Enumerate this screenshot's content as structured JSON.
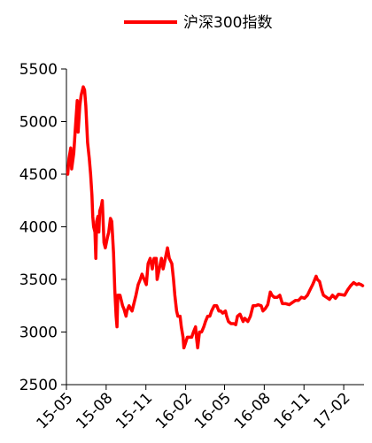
{
  "chart_data": {
    "type": "line",
    "title": "",
    "xlabel": "",
    "ylabel": "",
    "ylim": [
      2500,
      5500
    ],
    "yticks": [
      2500,
      3000,
      3500,
      4000,
      4500,
      5000,
      5500
    ],
    "x_ticks": [
      "15-05",
      "15-08",
      "15-11",
      "16-02",
      "16-05",
      "16-08",
      "16-11",
      "17-02"
    ],
    "x_range": [
      "2015-05-01",
      "2017-03-20"
    ],
    "grid": false,
    "legend": {
      "position": "top",
      "entries": [
        "沪深300指数"
      ]
    },
    "series": [
      {
        "name": "沪深300指数",
        "color": "#ff0000",
        "points": [
          [
            "2015-05-04",
            4500
          ],
          [
            "2015-05-07",
            4650
          ],
          [
            "2015-05-11",
            4750
          ],
          [
            "2015-05-13",
            4550
          ],
          [
            "2015-05-18",
            4700
          ],
          [
            "2015-05-21",
            4900
          ],
          [
            "2015-05-26",
            5200
          ],
          [
            "2015-05-28",
            4900
          ],
          [
            "2015-06-01",
            5150
          ],
          [
            "2015-06-04",
            5250
          ],
          [
            "2015-06-09",
            5330
          ],
          [
            "2015-06-12",
            5300
          ],
          [
            "2015-06-15",
            5150
          ],
          [
            "2015-06-19",
            4800
          ],
          [
            "2015-06-23",
            4650
          ],
          [
            "2015-06-26",
            4500
          ],
          [
            "2015-06-29",
            4300
          ],
          [
            "2015-07-01",
            4100
          ],
          [
            "2015-07-03",
            4000
          ],
          [
            "2015-07-06",
            3950
          ],
          [
            "2015-07-08",
            3700
          ],
          [
            "2015-07-10",
            4050
          ],
          [
            "2015-07-13",
            4100
          ],
          [
            "2015-07-15",
            3950
          ],
          [
            "2015-07-17",
            4150
          ],
          [
            "2015-07-21",
            4200
          ],
          [
            "2015-07-23",
            4250
          ],
          [
            "2015-07-27",
            3850
          ],
          [
            "2015-07-30",
            3800
          ],
          [
            "2015-08-04",
            3900
          ],
          [
            "2015-08-07",
            3950
          ],
          [
            "2015-08-11",
            4080
          ],
          [
            "2015-08-14",
            4050
          ],
          [
            "2015-08-18",
            3750
          ],
          [
            "2015-08-21",
            3400
          ],
          [
            "2015-08-24",
            3150
          ],
          [
            "2015-08-26",
            3050
          ],
          [
            "2015-08-28",
            3350
          ],
          [
            "2015-09-02",
            3350
          ],
          [
            "2015-09-08",
            3250
          ],
          [
            "2015-09-11",
            3220
          ],
          [
            "2015-09-16",
            3150
          ],
          [
            "2015-09-18",
            3200
          ],
          [
            "2015-09-23",
            3250
          ],
          [
            "2015-09-30",
            3200
          ],
          [
            "2015-10-09",
            3350
          ],
          [
            "2015-10-14",
            3450
          ],
          [
            "2015-10-19",
            3500
          ],
          [
            "2015-10-23",
            3550
          ],
          [
            "2015-10-28",
            3500
          ],
          [
            "2015-11-02",
            3450
          ],
          [
            "2015-11-06",
            3650
          ],
          [
            "2015-11-11",
            3700
          ],
          [
            "2015-11-16",
            3600
          ],
          [
            "2015-11-20",
            3700
          ],
          [
            "2015-11-25",
            3700
          ],
          [
            "2015-11-27",
            3500
          ],
          [
            "2015-12-02",
            3600
          ],
          [
            "2015-12-07",
            3700
          ],
          [
            "2015-12-11",
            3600
          ],
          [
            "2015-12-16",
            3700
          ],
          [
            "2015-12-21",
            3800
          ],
          [
            "2015-12-25",
            3700
          ],
          [
            "2015-12-31",
            3650
          ],
          [
            "2016-01-04",
            3500
          ],
          [
            "2016-01-07",
            3350
          ],
          [
            "2016-01-11",
            3200
          ],
          [
            "2016-01-14",
            3150
          ],
          [
            "2016-01-19",
            3150
          ],
          [
            "2016-01-22",
            3050
          ],
          [
            "2016-01-26",
            2950
          ],
          [
            "2016-01-28",
            2850
          ],
          [
            "2016-02-01",
            2900
          ],
          [
            "2016-02-05",
            2950
          ],
          [
            "2016-02-15",
            2950
          ],
          [
            "2016-02-19",
            3000
          ],
          [
            "2016-02-24",
            3050
          ],
          [
            "2016-02-26",
            2950
          ],
          [
            "2016-02-29",
            2850
          ],
          [
            "2016-03-04",
            3000
          ],
          [
            "2016-03-09",
            3000
          ],
          [
            "2016-03-14",
            3050
          ],
          [
            "2016-03-18",
            3100
          ],
          [
            "2016-03-23",
            3150
          ],
          [
            "2016-03-28",
            3150
          ],
          [
            "2016-04-01",
            3200
          ],
          [
            "2016-04-07",
            3250
          ],
          [
            "2016-04-13",
            3250
          ],
          [
            "2016-04-18",
            3200
          ],
          [
            "2016-04-22",
            3200
          ],
          [
            "2016-04-27",
            3180
          ],
          [
            "2016-05-03",
            3200
          ],
          [
            "2016-05-06",
            3150
          ],
          [
            "2016-05-10",
            3100
          ],
          [
            "2016-05-16",
            3080
          ],
          [
            "2016-05-23",
            3080
          ],
          [
            "2016-05-27",
            3070
          ],
          [
            "2016-05-31",
            3150
          ],
          [
            "2016-06-06",
            3170
          ],
          [
            "2016-06-13",
            3100
          ],
          [
            "2016-06-17",
            3130
          ],
          [
            "2016-06-24",
            3100
          ],
          [
            "2016-06-30",
            3150
          ],
          [
            "2016-07-06",
            3250
          ],
          [
            "2016-07-12",
            3250
          ],
          [
            "2016-07-18",
            3260
          ],
          [
            "2016-07-25",
            3250
          ],
          [
            "2016-07-29",
            3200
          ],
          [
            "2016-08-03",
            3220
          ],
          [
            "2016-08-09",
            3260
          ],
          [
            "2016-08-15",
            3380
          ],
          [
            "2016-08-19",
            3350
          ],
          [
            "2016-08-24",
            3330
          ],
          [
            "2016-08-31",
            3330
          ],
          [
            "2016-09-06",
            3350
          ],
          [
            "2016-09-12",
            3270
          ],
          [
            "2016-09-20",
            3270
          ],
          [
            "2016-09-28",
            3260
          ],
          [
            "2016-10-12",
            3300
          ],
          [
            "2016-10-19",
            3300
          ],
          [
            "2016-10-26",
            3330
          ],
          [
            "2016-11-02",
            3320
          ],
          [
            "2016-11-09",
            3350
          ],
          [
            "2016-11-15",
            3400
          ],
          [
            "2016-11-21",
            3450
          ],
          [
            "2016-11-29",
            3530
          ],
          [
            "2016-12-02",
            3500
          ],
          [
            "2016-12-07",
            3480
          ],
          [
            "2016-12-12",
            3400
          ],
          [
            "2016-12-16",
            3350
          ],
          [
            "2016-12-23",
            3330
          ],
          [
            "2016-12-30",
            3310
          ],
          [
            "2017-01-06",
            3350
          ],
          [
            "2017-01-13",
            3320
          ],
          [
            "2017-01-20",
            3360
          ],
          [
            "2017-02-03",
            3350
          ],
          [
            "2017-02-10",
            3400
          ],
          [
            "2017-02-17",
            3440
          ],
          [
            "2017-02-24",
            3470
          ],
          [
            "2017-03-03",
            3450
          ],
          [
            "2017-03-08",
            3460
          ],
          [
            "2017-03-13",
            3450
          ],
          [
            "2017-03-17",
            3440
          ]
        ]
      }
    ]
  }
}
